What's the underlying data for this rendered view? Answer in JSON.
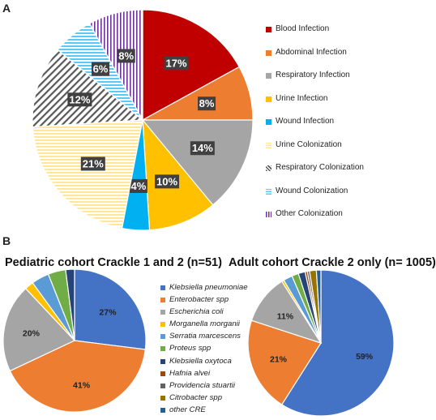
{
  "panel_a_letter": "A",
  "panel_b_letter": "B",
  "colors": {
    "blood_infection": "#c00000",
    "abdominal_infection": "#ed7d31",
    "respiratory_infection": "#a5a5a5",
    "urine_infection": "#ffc000",
    "wound_infection": "#00b0f0",
    "urine_colonization": "#ffe699",
    "respiratory_colonization": "#595959",
    "wound_colonization": "#5bc8f5",
    "other_colonization": "#7030a0",
    "klebsiella_pneumoniae": "#4472c4",
    "enterobacter_spp": "#ed7d31",
    "escherichia_coli": "#a5a5a5",
    "morganella_morganii": "#ffc000",
    "serratia_marcescens": "#5b9bd5",
    "proteus_spp": "#70ad47",
    "klebsiella_oxytoca": "#264478",
    "hafnia_alvei": "#9e480e",
    "providencia_stuartii": "#636363",
    "citrobacter_spp": "#997300",
    "other_cre": "#255e91"
  },
  "chart_data": [
    {
      "type": "pie",
      "panel": "A",
      "title": "",
      "legend_position": "right",
      "slices": [
        {
          "label": "Blood Infection",
          "value": 17,
          "data_label": "17%",
          "pattern": "solid"
        },
        {
          "label": "Abdominal Infection",
          "value": 8,
          "data_label": "8%",
          "pattern": "solid"
        },
        {
          "label": "Respiratory Infection",
          "value": 14,
          "data_label": "14%",
          "pattern": "solid"
        },
        {
          "label": "Urine Infection",
          "value": 10,
          "data_label": "10%",
          "pattern": "solid"
        },
        {
          "label": "Wound Infection",
          "value": 4,
          "data_label": "4%",
          "pattern": "solid"
        },
        {
          "label": "Urine Colonization",
          "value": 21,
          "data_label": "21%",
          "pattern": "horizontal-lines"
        },
        {
          "label": "Respiratory Colonization",
          "value": 12,
          "data_label": "12%",
          "pattern": "diagonal-lines"
        },
        {
          "label": "Wound Colonization",
          "value": 6,
          "data_label": "6%",
          "pattern": "horizontal-lines"
        },
        {
          "label": "Other Colonization",
          "value": 8,
          "data_label": "8%",
          "pattern": "vertical-lines"
        }
      ]
    },
    {
      "type": "pie",
      "panel": "B",
      "title": "Pediatric cohort Crackle 1 and 2 (n=51)",
      "legend_position": "center",
      "slices": [
        {
          "label": "Klebsiella pneumoniae",
          "value": 27,
          "data_label": "27%"
        },
        {
          "label": "Enterobacter spp",
          "value": 41,
          "data_label": "41%"
        },
        {
          "label": "Escherichia coli",
          "value": 20,
          "data_label": "20%"
        },
        {
          "label": "Morganella morganii",
          "value": 2,
          "data_label": ""
        },
        {
          "label": "Serratia marcescens",
          "value": 4,
          "data_label": ""
        },
        {
          "label": "Proteus spp",
          "value": 4,
          "data_label": ""
        },
        {
          "label": "Klebsiella oxytoca",
          "value": 2,
          "data_label": ""
        }
      ]
    },
    {
      "type": "pie",
      "panel": "B",
      "title": "Adult cohort Crackle 2 only (n= 1005)",
      "legend_position": "center",
      "slices": [
        {
          "label": "Klebsiella pneumoniae",
          "value": 59,
          "data_label": "59%"
        },
        {
          "label": "Enterobacter spp",
          "value": 21,
          "data_label": "21%"
        },
        {
          "label": "Escherichia coli",
          "value": 11,
          "data_label": "11%"
        },
        {
          "label": "Morganella morganii",
          "value": 0.5,
          "data_label": ""
        },
        {
          "label": "Serratia marcescens",
          "value": 2,
          "data_label": ""
        },
        {
          "label": "Proteus spp",
          "value": 1.5,
          "data_label": ""
        },
        {
          "label": "Klebsiella oxytoca",
          "value": 1.5,
          "data_label": ""
        },
        {
          "label": "Hafnia alvei",
          "value": 0.5,
          "data_label": ""
        },
        {
          "label": "Providencia stuartii",
          "value": 0.5,
          "data_label": ""
        },
        {
          "label": "Citrobacter spp",
          "value": 1.5,
          "data_label": ""
        },
        {
          "label": "other CRE",
          "value": 1,
          "data_label": ""
        }
      ]
    }
  ],
  "legend_a": [
    {
      "label": "Blood Infection",
      "color_key": "blood_infection",
      "pattern": "solid"
    },
    {
      "label": "Abdominal Infection",
      "color_key": "abdominal_infection",
      "pattern": "solid"
    },
    {
      "label": "Respiratory Infection",
      "color_key": "respiratory_infection",
      "pattern": "solid"
    },
    {
      "label": "Urine Infection",
      "color_key": "urine_infection",
      "pattern": "solid"
    },
    {
      "label": "Wound Infection",
      "color_key": "wound_infection",
      "pattern": "solid"
    },
    {
      "label": "Urine Colonization",
      "color_key": "urine_colonization",
      "pattern": "horizontal-lines"
    },
    {
      "label": "Respiratory Colonization",
      "color_key": "respiratory_colonization",
      "pattern": "diagonal-lines"
    },
    {
      "label": "Wound Colonization",
      "color_key": "wound_colonization",
      "pattern": "horizontal-lines"
    },
    {
      "label": "Other Colonization",
      "color_key": "other_colonization",
      "pattern": "vertical-lines"
    }
  ],
  "legend_b": [
    {
      "label": "Klebsiella pneumoniae",
      "color_key": "klebsiella_pneumoniae"
    },
    {
      "label": "Enterobacter spp",
      "color_key": "enterobacter_spp"
    },
    {
      "label": "Escherichia coli",
      "color_key": "escherichia_coli"
    },
    {
      "label": "Morganella morganii",
      "color_key": "morganella_morganii"
    },
    {
      "label": "Serratia marcescens",
      "color_key": "serratia_marcescens"
    },
    {
      "label": "Proteus spp",
      "color_key": "proteus_spp"
    },
    {
      "label": "Klebsiella oxytoca",
      "color_key": "klebsiella_oxytoca"
    },
    {
      "label": "Hafnia alvei",
      "color_key": "hafnia_alvei"
    },
    {
      "label": "Providencia stuartii",
      "color_key": "providencia_stuartii"
    },
    {
      "label": "Citrobacter spp",
      "color_key": "citrobacter_spp"
    },
    {
      "label": "other CRE",
      "color_key": "other_cre"
    }
  ]
}
